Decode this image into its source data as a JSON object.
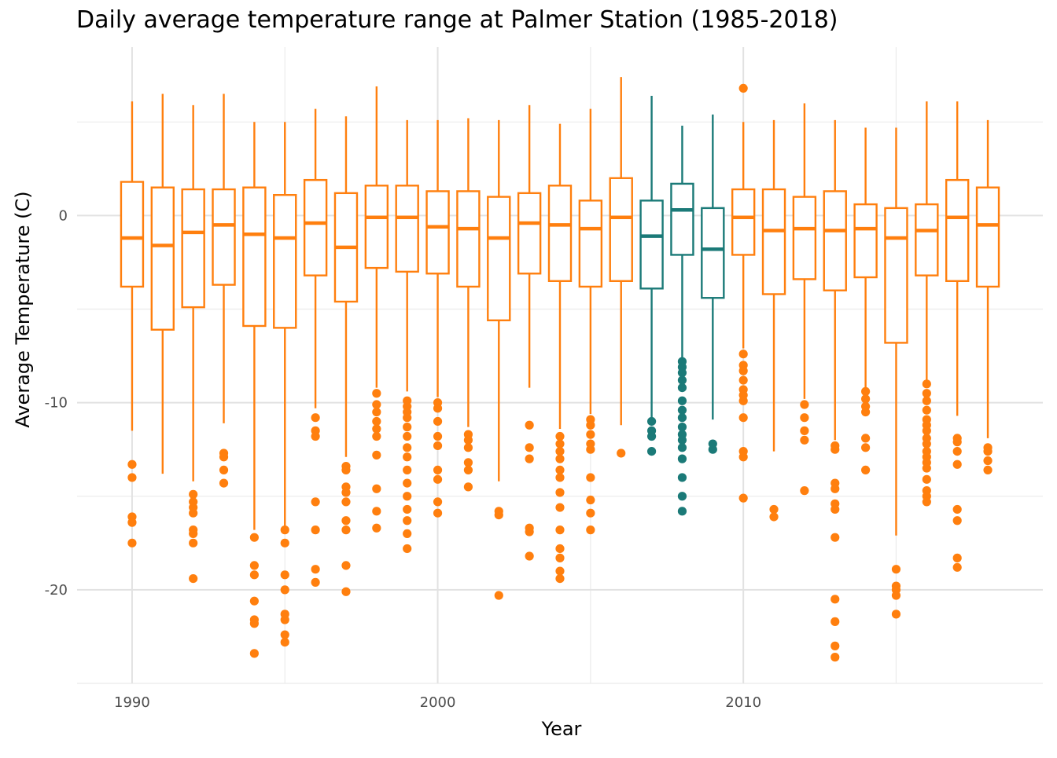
{
  "chart_data": {
    "type": "box",
    "title": "Daily average temperature range at Palmer Station (1985-2018)",
    "xlabel": "Year",
    "ylabel": "Average Temperature (C)",
    "xlim": [
      1988.2,
      2019.8
    ],
    "ylim": [
      -25,
      9
    ],
    "x_ticks": [
      1990,
      2000,
      2010
    ],
    "x_tick_labels": [
      "1990",
      "2000",
      "2010"
    ],
    "y_ticks": [
      0,
      -10,
      -20
    ],
    "y_tick_labels": [
      "0",
      "-10",
      "-20"
    ],
    "grid": true,
    "legend": "none",
    "colors": {
      "default": "#FF7F0E",
      "highlight": "#1B7A78"
    },
    "boxes": [
      {
        "year": 1990,
        "highlight": false,
        "whisker_low": -11.5,
        "q1": -3.8,
        "median": -1.2,
        "q3": 1.8,
        "whisker_high": 6.1,
        "outliers": [
          -13.3,
          -14.0,
          -16.1,
          -16.4,
          -17.5
        ]
      },
      {
        "year": 1991,
        "highlight": false,
        "whisker_low": -13.8,
        "q1": -6.1,
        "median": -1.6,
        "q3": 1.5,
        "whisker_high": 6.5,
        "outliers": []
      },
      {
        "year": 1992,
        "highlight": false,
        "whisker_low": -14.2,
        "q1": -4.9,
        "median": -0.9,
        "q3": 1.4,
        "whisker_high": 5.9,
        "outliers": [
          -14.9,
          -15.3,
          -15.6,
          -15.9,
          -16.8,
          -17.0,
          -17.5,
          -19.4
        ]
      },
      {
        "year": 1993,
        "highlight": false,
        "whisker_low": -11.1,
        "q1": -3.7,
        "median": -0.5,
        "q3": 1.4,
        "whisker_high": 6.5,
        "outliers": [
          -12.7,
          -12.9,
          -13.6,
          -14.3
        ]
      },
      {
        "year": 1994,
        "highlight": false,
        "whisker_low": -16.8,
        "q1": -5.9,
        "median": -1.0,
        "q3": 1.5,
        "whisker_high": 5.0,
        "outliers": [
          -17.2,
          -18.7,
          -19.2,
          -20.6,
          -21.6,
          -21.8,
          -23.4
        ]
      },
      {
        "year": 1995,
        "highlight": false,
        "whisker_low": -16.6,
        "q1": -6.0,
        "median": -1.2,
        "q3": 1.1,
        "whisker_high": 5.0,
        "outliers": [
          -16.8,
          -17.5,
          -19.2,
          -20.0,
          -21.3,
          -21.6,
          -22.4,
          -22.8
        ]
      },
      {
        "year": 1996,
        "highlight": false,
        "whisker_low": -10.3,
        "q1": -3.2,
        "median": -0.4,
        "q3": 1.9,
        "whisker_high": 5.7,
        "outliers": [
          -10.8,
          -11.5,
          -11.8,
          -15.3,
          -16.8,
          -18.9,
          -19.6
        ]
      },
      {
        "year": 1997,
        "highlight": false,
        "whisker_low": -12.9,
        "q1": -4.6,
        "median": -1.7,
        "q3": 1.2,
        "whisker_high": 5.3,
        "outliers": [
          -13.4,
          -13.6,
          -14.5,
          -14.8,
          -15.3,
          -16.3,
          -16.8,
          -18.7,
          -20.1
        ]
      },
      {
        "year": 1998,
        "highlight": false,
        "whisker_low": -9.2,
        "q1": -2.8,
        "median": -0.1,
        "q3": 1.6,
        "whisker_high": 6.9,
        "outliers": [
          -9.5,
          -10.1,
          -10.5,
          -11.0,
          -11.4,
          -11.8,
          -12.8,
          -14.6,
          -15.8,
          -16.7
        ]
      },
      {
        "year": 1999,
        "highlight": false,
        "whisker_low": -9.4,
        "q1": -3.0,
        "median": -0.1,
        "q3": 1.6,
        "whisker_high": 5.1,
        "outliers": [
          -9.9,
          -10.2,
          -10.5,
          -10.8,
          -11.3,
          -11.8,
          -12.4,
          -12.9,
          -13.6,
          -14.3,
          -15.0,
          -15.7,
          -16.3,
          -17.0,
          -17.8
        ]
      },
      {
        "year": 2000,
        "highlight": false,
        "whisker_low": -9.7,
        "q1": -3.1,
        "median": -0.6,
        "q3": 1.3,
        "whisker_high": 5.1,
        "outliers": [
          -10.0,
          -10.3,
          -11.0,
          -11.8,
          -12.3,
          -13.6,
          -14.1,
          -15.3,
          -15.9
        ]
      },
      {
        "year": 2001,
        "highlight": false,
        "whisker_low": -11.3,
        "q1": -3.8,
        "median": -0.7,
        "q3": 1.3,
        "whisker_high": 5.2,
        "outliers": [
          -11.7,
          -12.0,
          -12.4,
          -13.2,
          -13.6,
          -14.5
        ]
      },
      {
        "year": 2002,
        "highlight": false,
        "whisker_low": -14.2,
        "q1": -5.6,
        "median": -1.2,
        "q3": 1.0,
        "whisker_high": 5.1,
        "outliers": [
          -15.8,
          -16.0,
          -20.3
        ]
      },
      {
        "year": 2003,
        "highlight": false,
        "whisker_low": -9.2,
        "q1": -3.1,
        "median": -0.4,
        "q3": 1.2,
        "whisker_high": 5.9,
        "outliers": [
          -11.2,
          -12.4,
          -13.0,
          -16.7,
          -16.9,
          -18.2
        ]
      },
      {
        "year": 2004,
        "highlight": false,
        "whisker_low": -11.4,
        "q1": -3.5,
        "median": -0.5,
        "q3": 1.6,
        "whisker_high": 4.9,
        "outliers": [
          -11.8,
          -12.2,
          -12.6,
          -13.0,
          -13.6,
          -14.0,
          -14.8,
          -15.6,
          -16.8,
          -17.8,
          -18.3,
          -19.0,
          -19.4
        ]
      },
      {
        "year": 2005,
        "highlight": false,
        "whisker_low": -10.6,
        "q1": -3.8,
        "median": -0.7,
        "q3": 0.8,
        "whisker_high": 5.7,
        "outliers": [
          -10.9,
          -11.2,
          -11.7,
          -12.2,
          -12.5,
          -14.0,
          -15.2,
          -15.9,
          -16.8
        ]
      },
      {
        "year": 2006,
        "highlight": false,
        "whisker_low": -11.2,
        "q1": -3.5,
        "median": -0.1,
        "q3": 2.0,
        "whisker_high": 7.4,
        "outliers": [
          -12.7
        ]
      },
      {
        "year": 2007,
        "highlight": true,
        "whisker_low": -10.8,
        "q1": -3.9,
        "median": -1.1,
        "q3": 0.8,
        "whisker_high": 6.4,
        "outliers": [
          -11.0,
          -11.5,
          -11.8,
          -12.6
        ]
      },
      {
        "year": 2008,
        "highlight": true,
        "whisker_low": -7.6,
        "q1": -2.1,
        "median": 0.3,
        "q3": 1.7,
        "whisker_high": 4.8,
        "outliers": [
          -7.8,
          -8.1,
          -8.4,
          -8.8,
          -9.2,
          -9.9,
          -10.4,
          -10.8,
          -11.3,
          -11.7,
          -12.0,
          -12.4,
          -13.0,
          -14.0,
          -15.0,
          -15.8
        ]
      },
      {
        "year": 2009,
        "highlight": true,
        "whisker_low": -10.9,
        "q1": -4.4,
        "median": -1.8,
        "q3": 0.4,
        "whisker_high": 5.4,
        "outliers": [
          -12.2,
          -12.5
        ]
      },
      {
        "year": 2010,
        "highlight": false,
        "whisker_low": -7.1,
        "q1": -2.1,
        "median": -0.1,
        "q3": 1.4,
        "whisker_high": 5.0,
        "outliers": [
          -7.4,
          -8.0,
          -8.3,
          -8.8,
          -9.3,
          -9.6,
          -9.9,
          -10.8,
          -12.6,
          -12.9,
          -15.1,
          6.8
        ]
      },
      {
        "year": 2011,
        "highlight": false,
        "whisker_low": -12.6,
        "q1": -4.2,
        "median": -0.8,
        "q3": 1.4,
        "whisker_high": 5.1,
        "outliers": [
          -15.7,
          -16.1
        ]
      },
      {
        "year": 2012,
        "highlight": false,
        "whisker_low": -9.8,
        "q1": -3.4,
        "median": -0.7,
        "q3": 1.0,
        "whisker_high": 6.0,
        "outliers": [
          -10.1,
          -10.8,
          -11.5,
          -12.0,
          -14.7
        ]
      },
      {
        "year": 2013,
        "highlight": false,
        "whisker_low": -12.0,
        "q1": -4.0,
        "median": -0.8,
        "q3": 1.3,
        "whisker_high": 5.1,
        "outliers": [
          -12.3,
          -12.5,
          -14.3,
          -14.6,
          -15.4,
          -15.7,
          -17.2,
          -20.5,
          -21.7,
          -23.0,
          -23.6
        ]
      },
      {
        "year": 2014,
        "highlight": false,
        "whisker_low": -9.2,
        "q1": -3.3,
        "median": -0.7,
        "q3": 0.6,
        "whisker_high": 4.7,
        "outliers": [
          -9.4,
          -9.8,
          -10.2,
          -10.5,
          -11.9,
          -12.4,
          -13.6
        ]
      },
      {
        "year": 2015,
        "highlight": false,
        "whisker_low": -17.1,
        "q1": -6.8,
        "median": -1.2,
        "q3": 0.4,
        "whisker_high": 4.7,
        "outliers": [
          -18.9,
          -19.8,
          -20.0,
          -20.3,
          -21.3
        ]
      },
      {
        "year": 2016,
        "highlight": false,
        "whisker_low": -8.8,
        "q1": -3.2,
        "median": -0.8,
        "q3": 0.6,
        "whisker_high": 6.1,
        "outliers": [
          -9.0,
          -9.5,
          -9.9,
          -10.4,
          -10.9,
          -11.2,
          -11.5,
          -11.9,
          -12.2,
          -12.6,
          -12.9,
          -13.2,
          -13.5,
          -14.1,
          -14.7,
          -15.0,
          -15.3
        ]
      },
      {
        "year": 2017,
        "highlight": false,
        "whisker_low": -10.7,
        "q1": -3.5,
        "median": -0.1,
        "q3": 1.9,
        "whisker_high": 6.1,
        "outliers": [
          -11.9,
          -12.1,
          -12.6,
          -13.3,
          -15.7,
          -16.3,
          -18.3,
          -18.8
        ]
      },
      {
        "year": 2018,
        "highlight": false,
        "whisker_low": -11.9,
        "q1": -3.8,
        "median": -0.5,
        "q3": 1.5,
        "whisker_high": 5.1,
        "outliers": [
          -12.4,
          -12.6,
          -13.1,
          -13.6
        ]
      }
    ]
  }
}
